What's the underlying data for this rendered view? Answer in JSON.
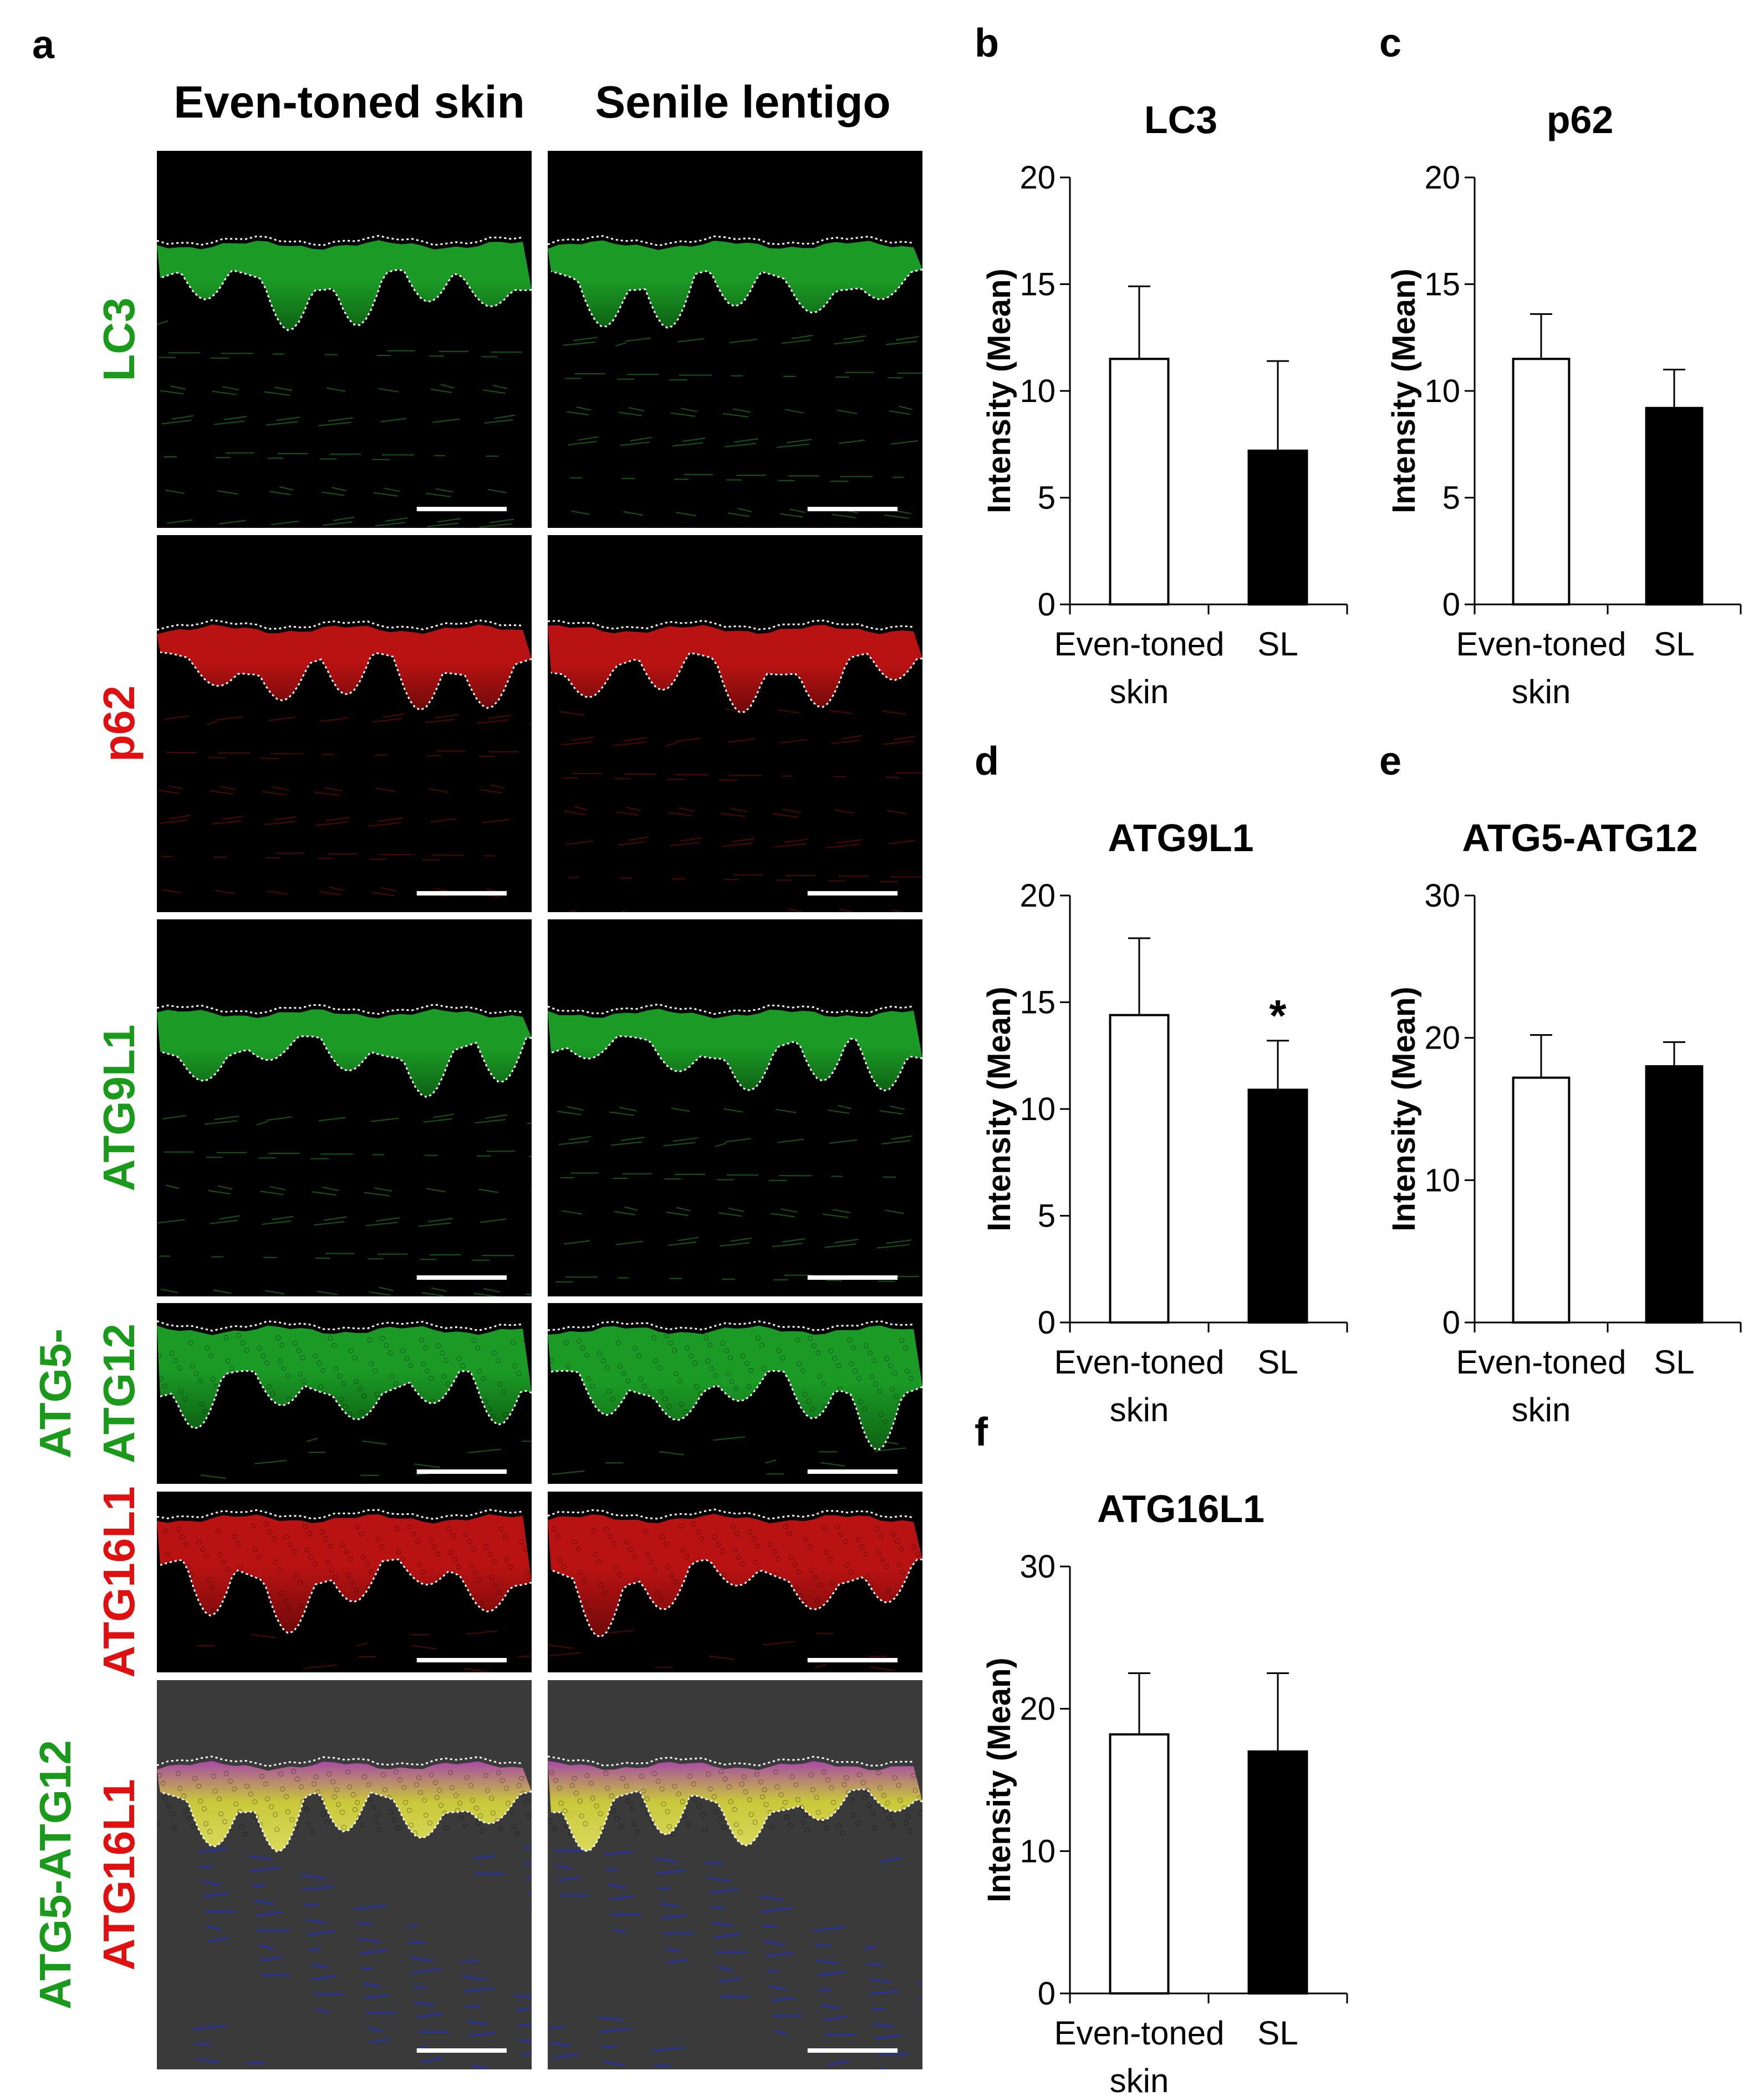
{
  "figure": {
    "panel_a": {
      "letter": "a",
      "column_titles": [
        "Even-toned skin",
        "Senile lentigo"
      ],
      "rows": [
        {
          "label_lines": [
            {
              "text": "LC3",
              "color": "#1a9a1a"
            }
          ],
          "stain": "green",
          "style": "diffuse"
        },
        {
          "label_lines": [
            {
              "text": "p62",
              "color": "#e01010"
            }
          ],
          "stain": "red",
          "style": "diffuse"
        },
        {
          "label_lines": [
            {
              "text": "ATG9L1",
              "color": "#1a9a1a"
            }
          ],
          "stain": "green",
          "style": "diffuse"
        },
        {
          "label_lines": [
            {
              "text": "ATG5-",
              "color": "#1a9a1a"
            },
            {
              "text": "ATG12",
              "color": "#1a9a1a"
            }
          ],
          "stain": "green",
          "style": "cellular"
        },
        {
          "label_lines": [
            {
              "text": "ATG16L1",
              "color": "#e01010"
            }
          ],
          "stain": "red",
          "style": "cellular"
        },
        {
          "label_lines": [
            {
              "text": "ATG5-ATG12",
              "color": "#1a9a1a"
            },
            {
              "text": "ATG16L1",
              "color": "#e01010"
            }
          ],
          "stain": "merge",
          "style": "merge"
        }
      ]
    }
  },
  "chart_data": [
    {
      "panel": "b",
      "type": "bar",
      "title": "LC3",
      "ylabel": "Intensity (Mean)",
      "categories": [
        "Even-toned skin",
        "SL"
      ],
      "values": [
        11.5,
        7.2
      ],
      "errors": [
        3.4,
        4.2
      ],
      "ylim": [
        0,
        20
      ],
      "yticks": [
        0,
        5,
        10,
        15,
        20
      ],
      "bar_colors": [
        "#ffffff",
        "#000000"
      ],
      "significance": [
        "",
        ""
      ]
    },
    {
      "panel": "c",
      "type": "bar",
      "title": "p62",
      "ylabel": "Intensity (Mean)",
      "categories": [
        "Even-toned skin",
        "SL"
      ],
      "values": [
        11.5,
        9.2
      ],
      "errors": [
        2.1,
        1.8
      ],
      "ylim": [
        0,
        20
      ],
      "yticks": [
        0,
        5,
        10,
        15,
        20
      ],
      "bar_colors": [
        "#ffffff",
        "#000000"
      ],
      "significance": [
        "",
        ""
      ]
    },
    {
      "panel": "d",
      "type": "bar",
      "title": "ATG9L1",
      "ylabel": "Intensity (Mean)",
      "categories": [
        "Even-toned skin",
        "SL"
      ],
      "values": [
        14.4,
        10.9
      ],
      "errors": [
        3.6,
        2.3
      ],
      "ylim": [
        0,
        20
      ],
      "yticks": [
        0,
        5,
        10,
        15,
        20
      ],
      "bar_colors": [
        "#ffffff",
        "#000000"
      ],
      "significance": [
        "",
        "*"
      ]
    },
    {
      "panel": "e",
      "type": "bar",
      "title": "ATG5-ATG12",
      "ylabel": "Intensity (Mean)",
      "categories": [
        "Even-toned skin",
        "SL"
      ],
      "values": [
        17.2,
        18.0
      ],
      "errors": [
        3.0,
        1.7
      ],
      "ylim": [
        0,
        30
      ],
      "yticks": [
        0,
        10,
        20,
        30
      ],
      "bar_colors": [
        "#ffffff",
        "#000000"
      ],
      "significance": [
        "",
        ""
      ]
    },
    {
      "panel": "f",
      "type": "bar",
      "title": "ATG16L1",
      "ylabel": "Intensity (Mean)",
      "categories": [
        "Even-toned skin",
        "SL"
      ],
      "values": [
        18.2,
        17.0
      ],
      "errors": [
        4.3,
        5.5
      ],
      "ylim": [
        0,
        30
      ],
      "yticks": [
        0,
        10,
        20,
        30
      ],
      "bar_colors": [
        "#ffffff",
        "#000000"
      ],
      "significance": [
        "",
        ""
      ]
    }
  ]
}
